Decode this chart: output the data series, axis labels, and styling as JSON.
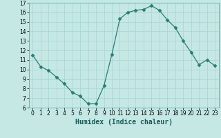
{
  "x": [
    0,
    1,
    2,
    3,
    4,
    5,
    6,
    7,
    8,
    9,
    10,
    11,
    12,
    13,
    14,
    15,
    16,
    17,
    18,
    19,
    20,
    21,
    22,
    23
  ],
  "y": [
    11.5,
    10.3,
    9.9,
    9.2,
    8.5,
    7.6,
    7.2,
    6.4,
    6.4,
    8.3,
    11.6,
    15.3,
    16.0,
    16.2,
    16.3,
    16.7,
    16.2,
    15.2,
    14.4,
    13.0,
    11.8,
    10.5,
    11.0,
    10.4
  ],
  "line_color": "#2a7d72",
  "marker": "D",
  "marker_size": 2.5,
  "bg_color": "#c5e8e5",
  "grid_color": "#aad8d4",
  "xlabel": "Humidex (Indice chaleur)",
  "ylim": [
    6,
    17
  ],
  "xlim": [
    -0.5,
    23.5
  ],
  "yticks": [
    6,
    7,
    8,
    9,
    10,
    11,
    12,
    13,
    14,
    15,
    16,
    17
  ],
  "xticks": [
    0,
    1,
    2,
    3,
    4,
    5,
    6,
    7,
    8,
    9,
    10,
    11,
    12,
    13,
    14,
    15,
    16,
    17,
    18,
    19,
    20,
    21,
    22,
    23
  ],
  "axis_fontsize": 6.5,
  "tick_fontsize": 5.5,
  "xlabel_fontsize": 7
}
